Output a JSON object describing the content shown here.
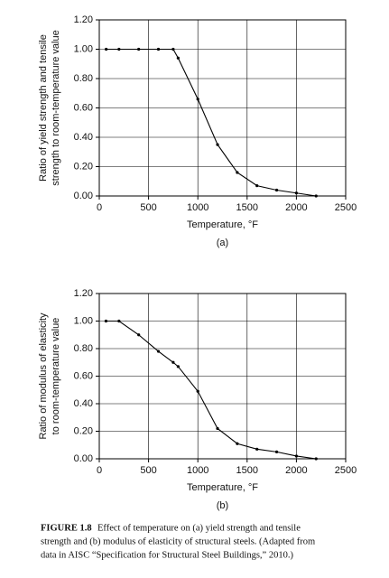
{
  "chart_data": [
    {
      "type": "line",
      "panel_label": "(a)",
      "xlabel": "Temperature, °F",
      "ylabel": [
        "Ratio of yield strength and tensile",
        "strength to room-temperature value"
      ],
      "x": [
        70,
        200,
        400,
        600,
        750,
        800,
        1000,
        1200,
        1400,
        1600,
        1800,
        2000,
        2200
      ],
      "series": [
        {
          "color": "#000000",
          "values": [
            1.0,
            1.0,
            1.0,
            1.0,
            1.0,
            0.94,
            0.66,
            0.35,
            0.16,
            0.07,
            0.04,
            0.02,
            0.0
          ]
        }
      ],
      "xlim": [
        0,
        2500
      ],
      "xticks": [
        0,
        500,
        1000,
        1500,
        2000,
        2500
      ],
      "ylim": [
        0,
        1.2
      ],
      "yticks": [
        {
          "value": 0,
          "label": "0.00"
        },
        {
          "value": 0.2,
          "label": "0.20"
        },
        {
          "value": 0.4,
          "label": "0.40"
        },
        {
          "value": 0.6,
          "label": "0.60"
        },
        {
          "value": 0.8,
          "label": "0.80"
        },
        {
          "value": 1.0,
          "label": "1.00"
        },
        {
          "value": 1.2,
          "label": "1.20"
        }
      ],
      "grid": true
    },
    {
      "type": "line",
      "panel_label": "(b)",
      "xlabel": "Temperature, °F",
      "ylabel": [
        "Ratio of modulus of elasticity",
        "to room-temperature value"
      ],
      "x": [
        68,
        200,
        400,
        600,
        750,
        800,
        1000,
        1200,
        1400,
        1600,
        1800,
        2000,
        2200
      ],
      "series": [
        {
          "color": "#000000",
          "values": [
            1.0,
            1.0,
            0.9,
            0.78,
            0.7,
            0.67,
            0.49,
            0.22,
            0.11,
            0.07,
            0.05,
            0.02,
            0.0
          ]
        }
      ],
      "xlim": [
        0,
        2500
      ],
      "xticks": [
        0,
        500,
        1000,
        1500,
        2000,
        2500
      ],
      "ylim": [
        0,
        1.2
      ],
      "yticks": [
        {
          "value": 0,
          "label": "0.00"
        },
        {
          "value": 0.2,
          "label": "0.20"
        },
        {
          "value": 0.4,
          "label": "0.40"
        },
        {
          "value": 0.6,
          "label": "0.60"
        },
        {
          "value": 0.8,
          "label": "0.80"
        },
        {
          "value": 1.0,
          "label": "1.00"
        },
        {
          "value": 1.2,
          "label": "1.20"
        }
      ],
      "grid": true
    }
  ],
  "caption": {
    "label": "FIGURE 1.8",
    "lines": [
      "Effect of temperature on (a) yield strength and tensile",
      "strength and (b) modulus of elasticity of structural steels. (Adapted from",
      "data in AISC “Specification for Structural Steel Buildings,” 2010.)"
    ]
  }
}
